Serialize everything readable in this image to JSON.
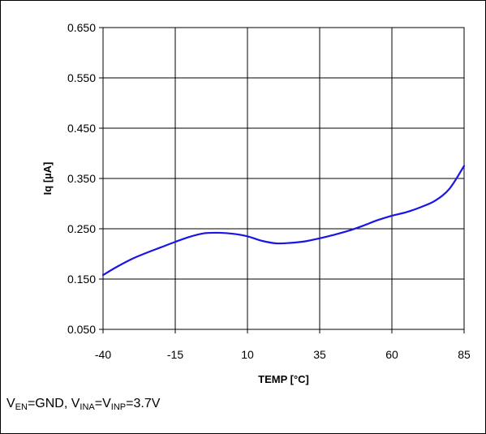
{
  "chart_data": {
    "type": "line",
    "xlabel": "TEMP [°C]",
    "ylabel": "Iq [µA]",
    "xlim": [
      -40,
      85
    ],
    "ylim": [
      0.05,
      0.65
    ],
    "x_ticks": [
      "-40",
      "-15",
      "10",
      "35",
      "60",
      "85"
    ],
    "y_ticks": [
      "0.650",
      "0.550",
      "0.450",
      "0.350",
      "0.250",
      "0.150",
      "0.050"
    ],
    "grid": true,
    "series": [
      {
        "x": [
          -40,
          -35,
          -30,
          -25,
          -20,
          -15,
          -10,
          -5,
          0,
          5,
          10,
          15,
          20,
          25,
          30,
          35,
          40,
          45,
          50,
          55,
          60,
          65,
          70,
          75,
          80,
          85
        ],
        "y": [
          0.158,
          0.175,
          0.19,
          0.202,
          0.213,
          0.224,
          0.234,
          0.241,
          0.242,
          0.24,
          0.235,
          0.226,
          0.221,
          0.222,
          0.225,
          0.231,
          0.238,
          0.246,
          0.256,
          0.267,
          0.276,
          0.283,
          0.293,
          0.306,
          0.33,
          0.375
        ],
        "color": "#1a14e6"
      }
    ]
  },
  "caption": {
    "v1": "V",
    "v1_sub": "EN",
    "mid": "=GND, V",
    "v2_sub": "INA",
    "eq": "=V",
    "v3_sub": "INP",
    "tail": "=3.7V"
  }
}
